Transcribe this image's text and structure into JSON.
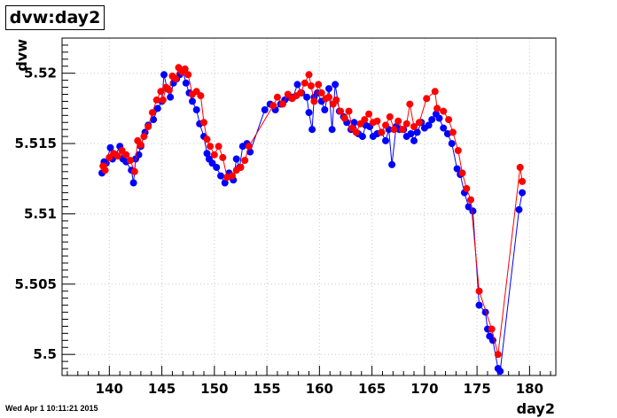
{
  "title": "dvw:day2",
  "timestamp": "Wed Apr  1 10:11:21 2015",
  "colors": {
    "series_blue": "#0000ff",
    "series_red": "#ff0000",
    "grid": "#c8c8c8"
  },
  "chart_data": {
    "type": "scatter",
    "xlabel": "day2",
    "ylabel": "dvw",
    "xlim": [
      135.5,
      182.5
    ],
    "ylim": [
      5.4985,
      5.5225
    ],
    "xticks": [
      "140",
      "145",
      "150",
      "155",
      "160",
      "165",
      "170",
      "175",
      "180"
    ],
    "yticks": [
      "5.5",
      "5.505",
      "5.51",
      "5.515",
      "5.52"
    ],
    "grid": true,
    "series": [
      {
        "color": "#0000ff",
        "x": [
          139.3,
          139.5,
          139.7,
          140.1,
          140.3,
          140.6,
          141.0,
          141.3,
          141.6,
          142.1,
          142.3,
          142.5,
          142.8,
          143.0,
          143.4,
          143.7,
          144.2,
          144.6,
          145.0,
          145.2,
          145.5,
          145.8,
          146.1,
          146.4,
          146.7,
          147.0,
          147.3,
          147.6,
          147.9,
          148.3,
          148.6,
          149.0,
          149.3,
          149.5,
          149.8,
          150.2,
          150.6,
          151.0,
          151.4,
          151.8,
          152.1,
          152.4,
          152.7,
          153.1,
          153.4,
          154.8,
          155.3,
          155.8,
          156.3,
          156.7,
          157.1,
          157.5,
          157.9,
          158.3,
          158.8,
          159.0,
          159.3,
          159.5,
          159.8,
          160.2,
          160.5,
          160.9,
          161.2,
          161.5,
          161.9,
          162.3,
          162.6,
          163.0,
          163.3,
          163.7,
          164.1,
          164.4,
          164.8,
          165.1,
          165.5,
          165.9,
          166.3,
          166.6,
          166.9,
          167.3,
          167.6,
          168.0,
          168.3,
          168.7,
          169.0,
          169.3,
          169.7,
          170.0,
          170.4,
          170.7,
          171.1,
          171.4,
          171.8,
          172.2,
          172.6,
          173.1,
          173.4,
          173.8,
          174.2,
          174.6,
          175.2,
          175.8,
          176.0,
          176.2,
          176.5,
          177.0,
          177.2,
          179.0,
          179.3
        ],
        "y": [
          5.5129,
          5.5137,
          5.5136,
          5.5147,
          5.5139,
          5.5142,
          5.5148,
          5.5139,
          5.5137,
          5.5131,
          5.5122,
          5.5139,
          5.5142,
          5.5148,
          5.5158,
          5.5163,
          5.5167,
          5.5175,
          5.518,
          5.5199,
          5.5189,
          5.5183,
          5.5193,
          5.5196,
          5.5199,
          5.5202,
          5.5193,
          5.5186,
          5.518,
          5.5174,
          5.5164,
          5.5155,
          5.5143,
          5.5139,
          5.5136,
          5.5133,
          5.5127,
          5.5122,
          5.5129,
          5.5124,
          5.5139,
          5.5133,
          5.5148,
          5.515,
          5.5144,
          5.5174,
          5.5178,
          5.5174,
          5.5178,
          5.5181,
          5.5183,
          5.5183,
          5.5192,
          5.5186,
          5.5183,
          5.5172,
          5.516,
          5.5183,
          5.5186,
          5.518,
          5.5174,
          5.5189,
          5.516,
          5.5192,
          5.5173,
          5.5169,
          5.5165,
          5.516,
          5.5165,
          5.5157,
          5.5155,
          5.5163,
          5.5162,
          5.5155,
          5.5157,
          5.5158,
          5.5152,
          5.516,
          5.5135,
          5.5162,
          5.516,
          5.516,
          5.5155,
          5.5157,
          5.5152,
          5.5158,
          5.5165,
          5.5161,
          5.5163,
          5.5167,
          5.5171,
          5.5168,
          5.5161,
          5.5157,
          5.515,
          5.5132,
          5.5128,
          5.5115,
          5.5105,
          5.5102,
          5.5035,
          5.503,
          5.5018,
          5.5013,
          5.501,
          5.499,
          5.4988,
          5.5103,
          5.5115
        ]
      },
      {
        "color": "#ff0000",
        "x": [
          139.4,
          139.6,
          140.0,
          140.4,
          140.8,
          141.2,
          141.6,
          142.0,
          142.4,
          142.7,
          143.0,
          143.3,
          143.7,
          144.1,
          144.5,
          144.9,
          145.1,
          145.4,
          145.7,
          146.0,
          146.3,
          146.6,
          146.9,
          147.2,
          147.5,
          147.9,
          148.3,
          148.7,
          149.0,
          149.3,
          149.6,
          150.0,
          150.4,
          150.8,
          151.2,
          151.7,
          152.1,
          152.5,
          152.9,
          153.3,
          155.6,
          156.0,
          156.5,
          157.0,
          157.4,
          157.8,
          158.2,
          158.6,
          159.0,
          159.2,
          159.5,
          159.9,
          160.2,
          160.6,
          160.9,
          161.3,
          161.6,
          162.0,
          162.4,
          162.8,
          163.1,
          163.5,
          163.9,
          164.3,
          164.7,
          165.1,
          165.5,
          165.9,
          166.3,
          166.7,
          167.1,
          167.5,
          167.9,
          168.3,
          168.6,
          169.0,
          169.5,
          170.2,
          171.0,
          171.2,
          171.8,
          172.3,
          172.7,
          173.2,
          173.6,
          174.0,
          174.4,
          175.2,
          176.4,
          177.0,
          179.1,
          179.3
        ],
        "y": [
          5.5134,
          5.5131,
          5.514,
          5.5143,
          5.5141,
          5.5145,
          5.5142,
          5.5138,
          5.513,
          5.5152,
          5.5149,
          5.5155,
          5.5162,
          5.5172,
          5.5181,
          5.5187,
          5.5181,
          5.519,
          5.5188,
          5.5198,
          5.5196,
          5.5204,
          5.5201,
          5.5203,
          5.5199,
          5.5185,
          5.5187,
          5.5184,
          5.5165,
          5.5153,
          5.5148,
          5.5142,
          5.5148,
          5.514,
          5.5126,
          5.5127,
          5.5131,
          5.5133,
          5.5138,
          5.5148,
          5.5177,
          5.5183,
          5.5178,
          5.5185,
          5.5182,
          5.5184,
          5.5186,
          5.5193,
          5.5199,
          5.5191,
          5.518,
          5.5192,
          5.5186,
          5.5182,
          5.5183,
          5.5178,
          5.5181,
          5.5173,
          5.5168,
          5.5173,
          5.5161,
          5.5158,
          5.5164,
          5.5167,
          5.5171,
          5.5165,
          5.5166,
          5.5158,
          5.5163,
          5.5169,
          5.516,
          5.5166,
          5.516,
          5.5164,
          5.5178,
          5.5162,
          5.5165,
          5.5182,
          5.5187,
          5.5175,
          5.5173,
          5.5167,
          5.5158,
          5.5145,
          5.5129,
          5.5118,
          5.511,
          5.5045,
          5.5018,
          5.5,
          5.5133,
          5.5123
        ]
      }
    ]
  }
}
